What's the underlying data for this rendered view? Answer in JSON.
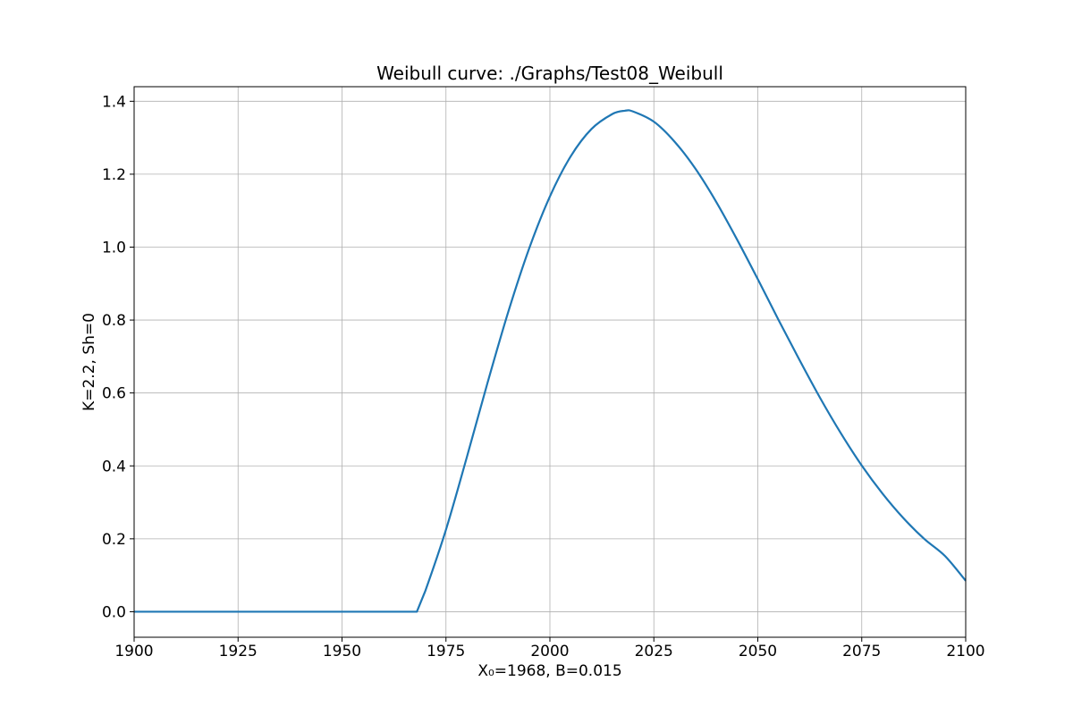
{
  "chart_data": {
    "type": "line",
    "title": "Weibull curve: ./Graphs/Test08_Weibull",
    "xlabel": "X₀=1968, B=0.015",
    "ylabel": "K=2.2, Sh=0",
    "xlim": [
      1900,
      2100
    ],
    "ylim": [
      -0.07,
      1.44
    ],
    "xticks": [
      1900,
      1925,
      1950,
      1975,
      2000,
      2025,
      2050,
      2075,
      2100
    ],
    "xtick_labels": [
      "1900",
      "1925",
      "1950",
      "1975",
      "2000",
      "2025",
      "2050",
      "2075",
      "2100"
    ],
    "yticks": [
      0.0,
      0.2,
      0.4,
      0.6,
      0.8,
      1.0,
      1.2,
      1.4
    ],
    "ytick_labels": [
      "0.0",
      "0.2",
      "0.4",
      "0.6",
      "0.8",
      "1.0",
      "1.2",
      "1.4"
    ],
    "grid": true,
    "series": [
      {
        "color": "#1f77b4",
        "x": [
          1900,
          1920,
          1940,
          1960,
          1968,
          1970,
          1975,
          1980,
          1985,
          1990,
          1995,
          2000,
          2005,
          2010,
          2015,
          2018,
          2020,
          2025,
          2030,
          2035,
          2040,
          2045,
          2050,
          2055,
          2060,
          2065,
          2070,
          2075,
          2080,
          2085,
          2090,
          2095,
          2100
        ],
        "y": [
          0,
          0,
          0,
          0,
          0,
          0.056,
          0.225,
          0.423,
          0.628,
          0.823,
          0.996,
          1.139,
          1.249,
          1.324,
          1.365,
          1.374,
          1.372,
          1.344,
          1.289,
          1.215,
          1.124,
          1.021,
          0.912,
          0.8,
          0.691,
          0.586,
          0.489,
          0.401,
          0.324,
          0.257,
          0.2,
          0.153,
          0.085
        ]
      }
    ]
  }
}
